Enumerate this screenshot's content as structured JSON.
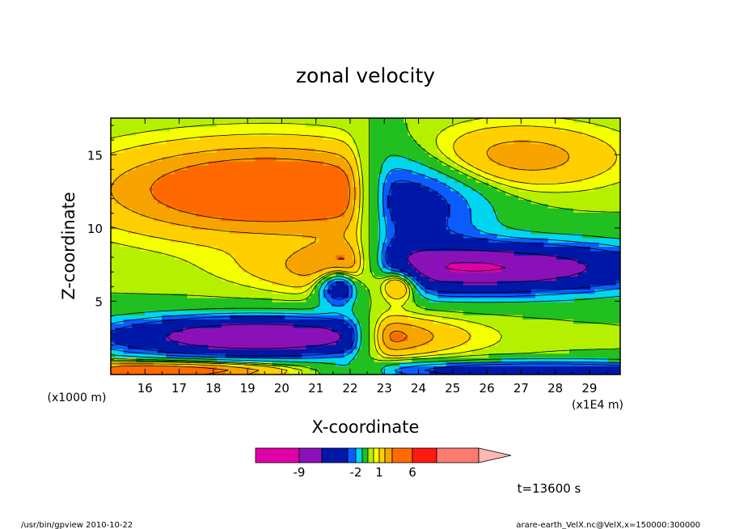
{
  "chart_data": {
    "type": "heatmap",
    "title": "zonal velocity",
    "xlabel": "X-coordinate",
    "ylabel": "Z-coordinate",
    "x_unit": "(x1E4 m)",
    "y_unit": "(x1000 m)",
    "xlim": [
      15.0,
      29.9
    ],
    "ylim": [
      0.0,
      17.5
    ],
    "x_ticks": [
      16,
      17,
      18,
      19,
      20,
      21,
      22,
      23,
      24,
      25,
      26,
      27,
      28,
      29
    ],
    "y_ticks": [
      5,
      10,
      15
    ],
    "x_tick_labels": [
      "16",
      "17",
      "18",
      "19",
      "20",
      "21",
      "22",
      "23",
      "24",
      "25",
      "26",
      "27",
      "28",
      "29"
    ],
    "y_tick_labels": [
      "5",
      "10",
      "15"
    ],
    "color_levels": [
      {
        "min": -12,
        "max": -9,
        "color": "#e000a8"
      },
      {
        "min": -9,
        "max": -6,
        "color": "#8a10b8"
      },
      {
        "min": -6,
        "max": -3,
        "color": "#0018a8"
      },
      {
        "min": -3,
        "max": -2,
        "color": "#0a5cff"
      },
      {
        "min": -2,
        "max": -1,
        "color": "#00d6f0"
      },
      {
        "min": -1,
        "max": 0,
        "color": "#20c020"
      },
      {
        "min": 0,
        "max": 0.5,
        "color": "#b4f000"
      },
      {
        "min": 0.5,
        "max": 1,
        "color": "#f4ff00"
      },
      {
        "min": 1,
        "max": 2,
        "color": "#ffcf00"
      },
      {
        "min": 2,
        "max": 3,
        "color": "#f7a300"
      },
      {
        "min": 3,
        "max": 6,
        "color": "#ff6a00"
      },
      {
        "min": 6,
        "max": 9,
        "color": "#ff1a10"
      },
      {
        "min": 9,
        "max": 12,
        "color": "#ff7a70"
      },
      {
        "min": 12,
        "max": 15,
        "color": "#ffb8b4"
      }
    ],
    "colorbar_labels": [
      "-9",
      "-2",
      "1",
      "6"
    ],
    "contour_lines": true
  },
  "time_label": "t=13600 s",
  "footer_left": "/usr/bin/gpview  2010-10-22",
  "footer_right": "arare-earth_VelX.nc@VelX,x=150000:300000"
}
